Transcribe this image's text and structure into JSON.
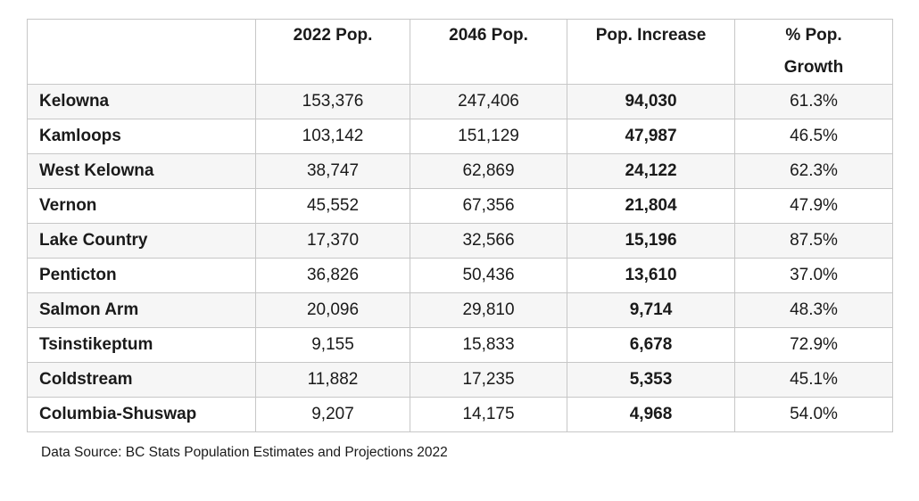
{
  "chart_data": {
    "type": "table",
    "title": "",
    "columns": [
      "",
      "2022 Pop.",
      "2046 Pop.",
      "Pop. Increase",
      "% Pop. Growth"
    ],
    "rows": [
      [
        "Kelowna",
        "153,376",
        "247,406",
        "94,030",
        "61.3%"
      ],
      [
        "Kamloops",
        "103,142",
        "151,129",
        "47,987",
        "46.5%"
      ],
      [
        "West Kelowna",
        "38,747",
        "62,869",
        "24,122",
        "62.3%"
      ],
      [
        "Vernon",
        "45,552",
        "67,356",
        "21,804",
        "47.9%"
      ],
      [
        "Lake Country",
        "17,370",
        "32,566",
        "15,196",
        "87.5%"
      ],
      [
        "Penticton",
        "36,826",
        "50,436",
        "13,610",
        "37.0%"
      ],
      [
        "Salmon Arm",
        "20,096",
        "29,810",
        "9,714",
        "48.3%"
      ],
      [
        "Tsinstikeptum",
        "9,155",
        "15,833",
        "6,678",
        "72.9%"
      ],
      [
        "Coldstream",
        "11,882",
        "17,235",
        "5,353",
        "45.1%"
      ],
      [
        "Columbia-Shuswap",
        "9,207",
        "14,175",
        "4,968",
        "54.0%"
      ]
    ],
    "layout_hints": {
      "bold_columns": [
        "municipality",
        "Pop. Increase"
      ],
      "alternating_row_shading": true
    }
  },
  "footer": {
    "source_note": "Data Source: BC Stats Population Estimates and Projections 2022"
  },
  "colors": {
    "alt_row_background": "#f6f6f6",
    "table_border": "#c7c7c7",
    "text": "#1a1a1a"
  }
}
